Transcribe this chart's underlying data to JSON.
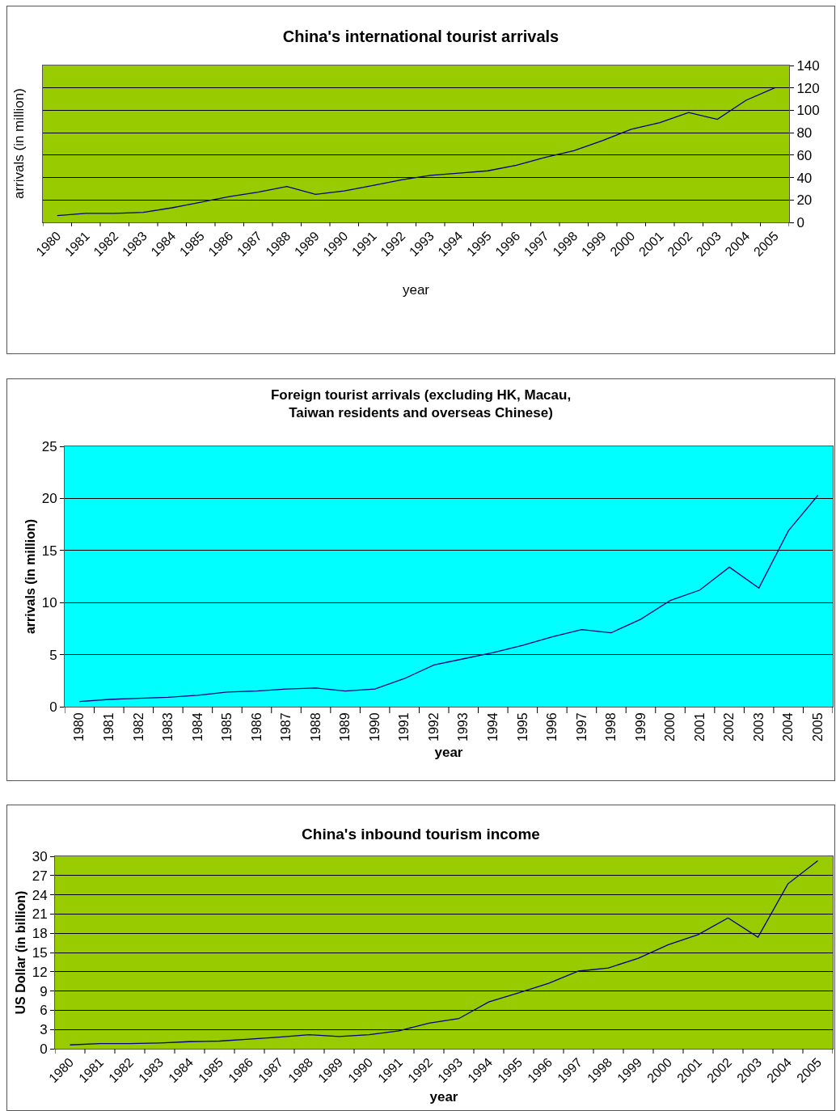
{
  "chart_data": [
    {
      "type": "line",
      "title": "China's international tourist arrivals",
      "xlabel": "year",
      "ylabel": "arrivals (in million)",
      "categories": [
        "1980",
        "1981",
        "1982",
        "1983",
        "1984",
        "1985",
        "1986",
        "1987",
        "1988",
        "1989",
        "1990",
        "1991",
        "1992",
        "1993",
        "1994",
        "1995",
        "1996",
        "1997",
        "1998",
        "1999",
        "2000",
        "2001",
        "2002",
        "2003",
        "2004",
        "2005"
      ],
      "series": [
        {
          "color": "#000080",
          "values": [
            6,
            8,
            8,
            9,
            13,
            18,
            23,
            27,
            32,
            25,
            28,
            33,
            38,
            42,
            44,
            46,
            51,
            58,
            64,
            73,
            83,
            89,
            98,
            92,
            109,
            120
          ]
        }
      ],
      "ylim": [
        0,
        140
      ],
      "yticks": [
        0,
        20,
        40,
        60,
        80,
        100,
        120,
        140
      ],
      "grid": "y",
      "marker": "none",
      "line_style": "solid"
    },
    {
      "type": "line",
      "title": "Foreign tourist arrivals (excluding HK, Macau,\nTaiwan residents and overseas Chinese)",
      "xlabel": "year",
      "ylabel": "arrivals (in million)",
      "categories": [
        "1980",
        "1981",
        "1982",
        "1983",
        "1984",
        "1985",
        "1986",
        "1987",
        "1988",
        "1989",
        "1990",
        "1991",
        "1992",
        "1993",
        "1994",
        "1995",
        "1996",
        "1997",
        "1998",
        "1999",
        "2000",
        "2001",
        "2002",
        "2003",
        "2004",
        "2005"
      ],
      "series": [
        {
          "color": "#000080",
          "values": [
            0.5,
            0.7,
            0.8,
            0.9,
            1.1,
            1.4,
            1.5,
            1.7,
            1.8,
            1.5,
            1.7,
            2.7,
            4.0,
            4.6,
            5.2,
            5.9,
            6.7,
            7.4,
            7.1,
            8.4,
            10.2,
            11.2,
            13.4,
            11.4,
            16.9,
            20.3
          ]
        }
      ],
      "ylim": [
        0,
        25
      ],
      "yticks": [
        0,
        5,
        10,
        15,
        20,
        25
      ],
      "grid": "y",
      "marker": "none",
      "line_style": "solid"
    },
    {
      "type": "line",
      "title": "China's inbound tourism income",
      "xlabel": "year",
      "ylabel": "US Dollar (in billion)",
      "categories": [
        "1980",
        "1981",
        "1982",
        "1983",
        "1984",
        "1985",
        "1986",
        "1987",
        "1988",
        "1989",
        "1990",
        "1991",
        "1992",
        "1993",
        "1994",
        "1995",
        "1996",
        "1997",
        "1998",
        "1999",
        "2000",
        "2001",
        "2002",
        "2003",
        "2004",
        "2005"
      ],
      "series": [
        {
          "color": "#000080",
          "values": [
            0.6,
            0.8,
            0.8,
            0.9,
            1.1,
            1.2,
            1.5,
            1.8,
            2.2,
            1.9,
            2.2,
            2.8,
            4.0,
            4.7,
            7.3,
            8.7,
            10.2,
            12.1,
            12.6,
            14.1,
            16.2,
            17.8,
            20.4,
            17.4,
            25.7,
            29.3
          ]
        }
      ],
      "ylim": [
        0,
        30
      ],
      "yticks": [
        0,
        3,
        6,
        9,
        12,
        15,
        18,
        21,
        24,
        27,
        30
      ],
      "grid": "y",
      "marker": "none",
      "line_style": "solid"
    }
  ]
}
